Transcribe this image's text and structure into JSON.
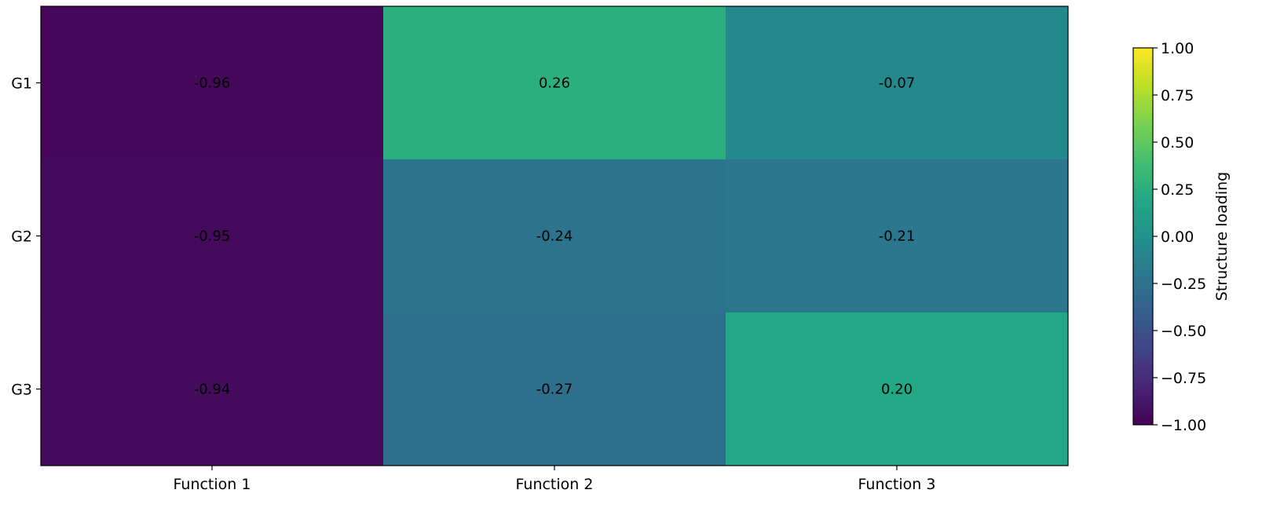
{
  "chart_data": {
    "type": "heatmap",
    "rows": [
      "G1",
      "G2",
      "G3"
    ],
    "columns": [
      "Function 1",
      "Function 2",
      "Function 3"
    ],
    "values": [
      [
        -0.96,
        0.26,
        -0.07
      ],
      [
        -0.95,
        -0.24,
        -0.21
      ],
      [
        -0.94,
        -0.27,
        0.2
      ]
    ],
    "value_labels": [
      [
        "-0.96",
        "0.26",
        "-0.07"
      ],
      [
        "-0.95",
        "-0.24",
        "-0.21"
      ],
      [
        "-0.94",
        "-0.27",
        "0.20"
      ]
    ],
    "colormap": "viridis",
    "vmin": -1.0,
    "vmax": 1.0,
    "colorbar": {
      "label": "Structure loading",
      "ticks": [
        1.0,
        0.75,
        0.5,
        0.25,
        0.0,
        -0.25,
        -0.5,
        -0.75,
        -1.0
      ],
      "tick_labels": [
        "1.00",
        "0.75",
        "0.50",
        "0.25",
        "0.00",
        "−0.25",
        "−0.50",
        "−0.75",
        "−1.00"
      ]
    },
    "grid": false
  }
}
